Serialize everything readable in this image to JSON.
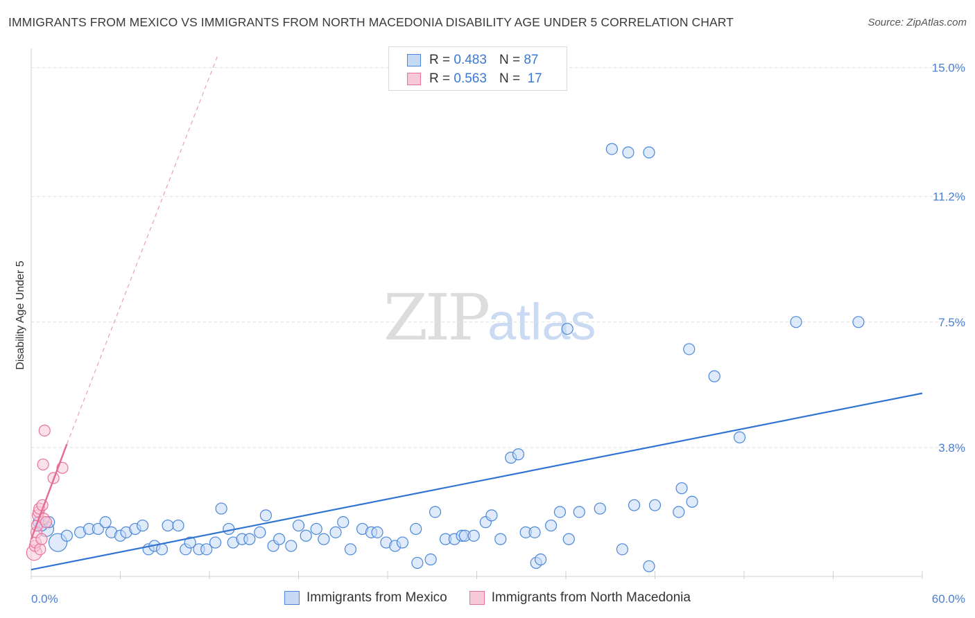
{
  "title": "IMMIGRANTS FROM MEXICO VS IMMIGRANTS FROM NORTH MACEDONIA DISABILITY AGE UNDER 5 CORRELATION CHART",
  "source": "Source: ZipAtlas.com",
  "watermark": {
    "zip": "ZIP",
    "atlas": "atlas"
  },
  "colors": {
    "blue": "#4a86d9",
    "blue_fill": "#c5d9f5",
    "pink": "#e8729a",
    "pink_fill": "#f7c9d7",
    "trend_blue": "#2f74d0",
    "trend_pink": "#e06b93"
  },
  "legend": {
    "rows": [
      {
        "r_label": "R =",
        "r_value": "0.483",
        "n_label": "N =",
        "n_value": "87"
      },
      {
        "r_label": "R =",
        "r_value": "0.563",
        "n_label": "N =",
        "n_value": "17"
      }
    ]
  },
  "bottom_legend": [
    "Immigrants from Mexico",
    "Immigrants from North Macedonia"
  ],
  "chart_data": {
    "type": "scatter",
    "title": "IMMIGRANTS FROM MEXICO VS IMMIGRANTS FROM NORTH MACEDONIA DISABILITY AGE UNDER 5 CORRELATION CHART",
    "xlabel": "",
    "ylabel": "Disability Age Under 5",
    "xlim": [
      0,
      60
    ],
    "ylim": [
      0,
      15.4
    ],
    "x_tick_labels": [
      "0.0%",
      "60.0%"
    ],
    "y_ticks": [
      3.8,
      7.5,
      11.2,
      15.0
    ],
    "y_tick_labels": [
      "3.8%",
      "7.5%",
      "11.2%",
      "15.0%"
    ],
    "series": [
      {
        "name": "Immigrants from Mexico",
        "color": "#4a86d9",
        "trend": {
          "x0": 0,
          "y0": 0.2,
          "x1": 60,
          "y1": 5.4
        },
        "points": [
          [
            0.5,
            1.6
          ],
          [
            1.0,
            1.4
          ],
          [
            1.8,
            1.0
          ],
          [
            2.4,
            1.2
          ],
          [
            3.3,
            1.3
          ],
          [
            3.9,
            1.4
          ],
          [
            4.5,
            1.4
          ],
          [
            5.0,
            1.6
          ],
          [
            5.4,
            1.3
          ],
          [
            6.0,
            1.2
          ],
          [
            6.4,
            1.3
          ],
          [
            7.0,
            1.4
          ],
          [
            7.5,
            1.5
          ],
          [
            7.9,
            0.8
          ],
          [
            8.3,
            0.9
          ],
          [
            8.8,
            0.8
          ],
          [
            9.2,
            1.5
          ],
          [
            9.9,
            1.5
          ],
          [
            10.4,
            0.8
          ],
          [
            10.7,
            1.0
          ],
          [
            11.3,
            0.8
          ],
          [
            11.8,
            0.8
          ],
          [
            12.4,
            1.0
          ],
          [
            12.8,
            2.0
          ],
          [
            13.3,
            1.4
          ],
          [
            13.6,
            1.0
          ],
          [
            14.2,
            1.1
          ],
          [
            14.7,
            1.1
          ],
          [
            15.4,
            1.3
          ],
          [
            15.8,
            1.8
          ],
          [
            16.3,
            0.9
          ],
          [
            16.7,
            1.1
          ],
          [
            17.5,
            0.9
          ],
          [
            18.0,
            1.5
          ],
          [
            18.5,
            1.2
          ],
          [
            19.2,
            1.4
          ],
          [
            19.7,
            1.1
          ],
          [
            20.5,
            1.3
          ],
          [
            21.0,
            1.6
          ],
          [
            21.5,
            0.8
          ],
          [
            22.3,
            1.4
          ],
          [
            22.9,
            1.3
          ],
          [
            23.3,
            1.3
          ],
          [
            23.9,
            1.0
          ],
          [
            24.5,
            0.9
          ],
          [
            25.0,
            1.0
          ],
          [
            25.9,
            1.4
          ],
          [
            26.0,
            0.4
          ],
          [
            26.9,
            0.5
          ],
          [
            27.2,
            1.9
          ],
          [
            27.9,
            1.1
          ],
          [
            28.5,
            1.1
          ],
          [
            29.0,
            1.2
          ],
          [
            29.2,
            1.2
          ],
          [
            29.8,
            1.2
          ],
          [
            30.6,
            1.6
          ],
          [
            31.0,
            1.8
          ],
          [
            31.6,
            1.1
          ],
          [
            32.3,
            3.5
          ],
          [
            32.8,
            3.6
          ],
          [
            33.3,
            1.3
          ],
          [
            33.9,
            1.3
          ],
          [
            34.0,
            0.4
          ],
          [
            34.3,
            0.5
          ],
          [
            35.0,
            1.5
          ],
          [
            35.6,
            1.9
          ],
          [
            36.2,
            1.1
          ],
          [
            36.9,
            1.9
          ],
          [
            38.3,
            2.0
          ],
          [
            39.1,
            12.6
          ],
          [
            40.2,
            12.5
          ],
          [
            41.6,
            12.5
          ],
          [
            39.8,
            0.8
          ],
          [
            40.6,
            2.1
          ],
          [
            41.6,
            0.3
          ],
          [
            42.0,
            2.1
          ],
          [
            43.6,
            1.9
          ],
          [
            43.8,
            2.6
          ],
          [
            44.3,
            6.7
          ],
          [
            44.5,
            2.2
          ],
          [
            46.0,
            5.9
          ],
          [
            47.7,
            4.1
          ],
          [
            51.5,
            7.5
          ],
          [
            55.7,
            7.5
          ],
          [
            36.1,
            7.3
          ],
          [
            0.7,
            1.5
          ],
          [
            1.2,
            1.6
          ]
        ]
      },
      {
        "name": "Immigrants from North Macedonia",
        "color": "#e8729a",
        "trend": {
          "x0": 0,
          "y0": 1.1,
          "x1": 2.4,
          "y1": 3.9
        },
        "trend_dashed_ext": {
          "x0": 2.4,
          "y0": 3.9,
          "x1": 12.6,
          "y1": 15.4
        },
        "points": [
          [
            0.2,
            0.7
          ],
          [
            0.25,
            0.9
          ],
          [
            0.3,
            1.0
          ],
          [
            0.35,
            1.3
          ],
          [
            0.4,
            1.5
          ],
          [
            0.45,
            1.8
          ],
          [
            0.5,
            1.9
          ],
          [
            0.55,
            2.0
          ],
          [
            0.6,
            0.8
          ],
          [
            0.7,
            1.1
          ],
          [
            0.75,
            2.1
          ],
          [
            0.85,
            1.7
          ],
          [
            1.0,
            1.6
          ],
          [
            0.9,
            4.3
          ],
          [
            0.8,
            3.3
          ],
          [
            1.5,
            2.9
          ],
          [
            2.1,
            3.2
          ]
        ]
      }
    ]
  }
}
